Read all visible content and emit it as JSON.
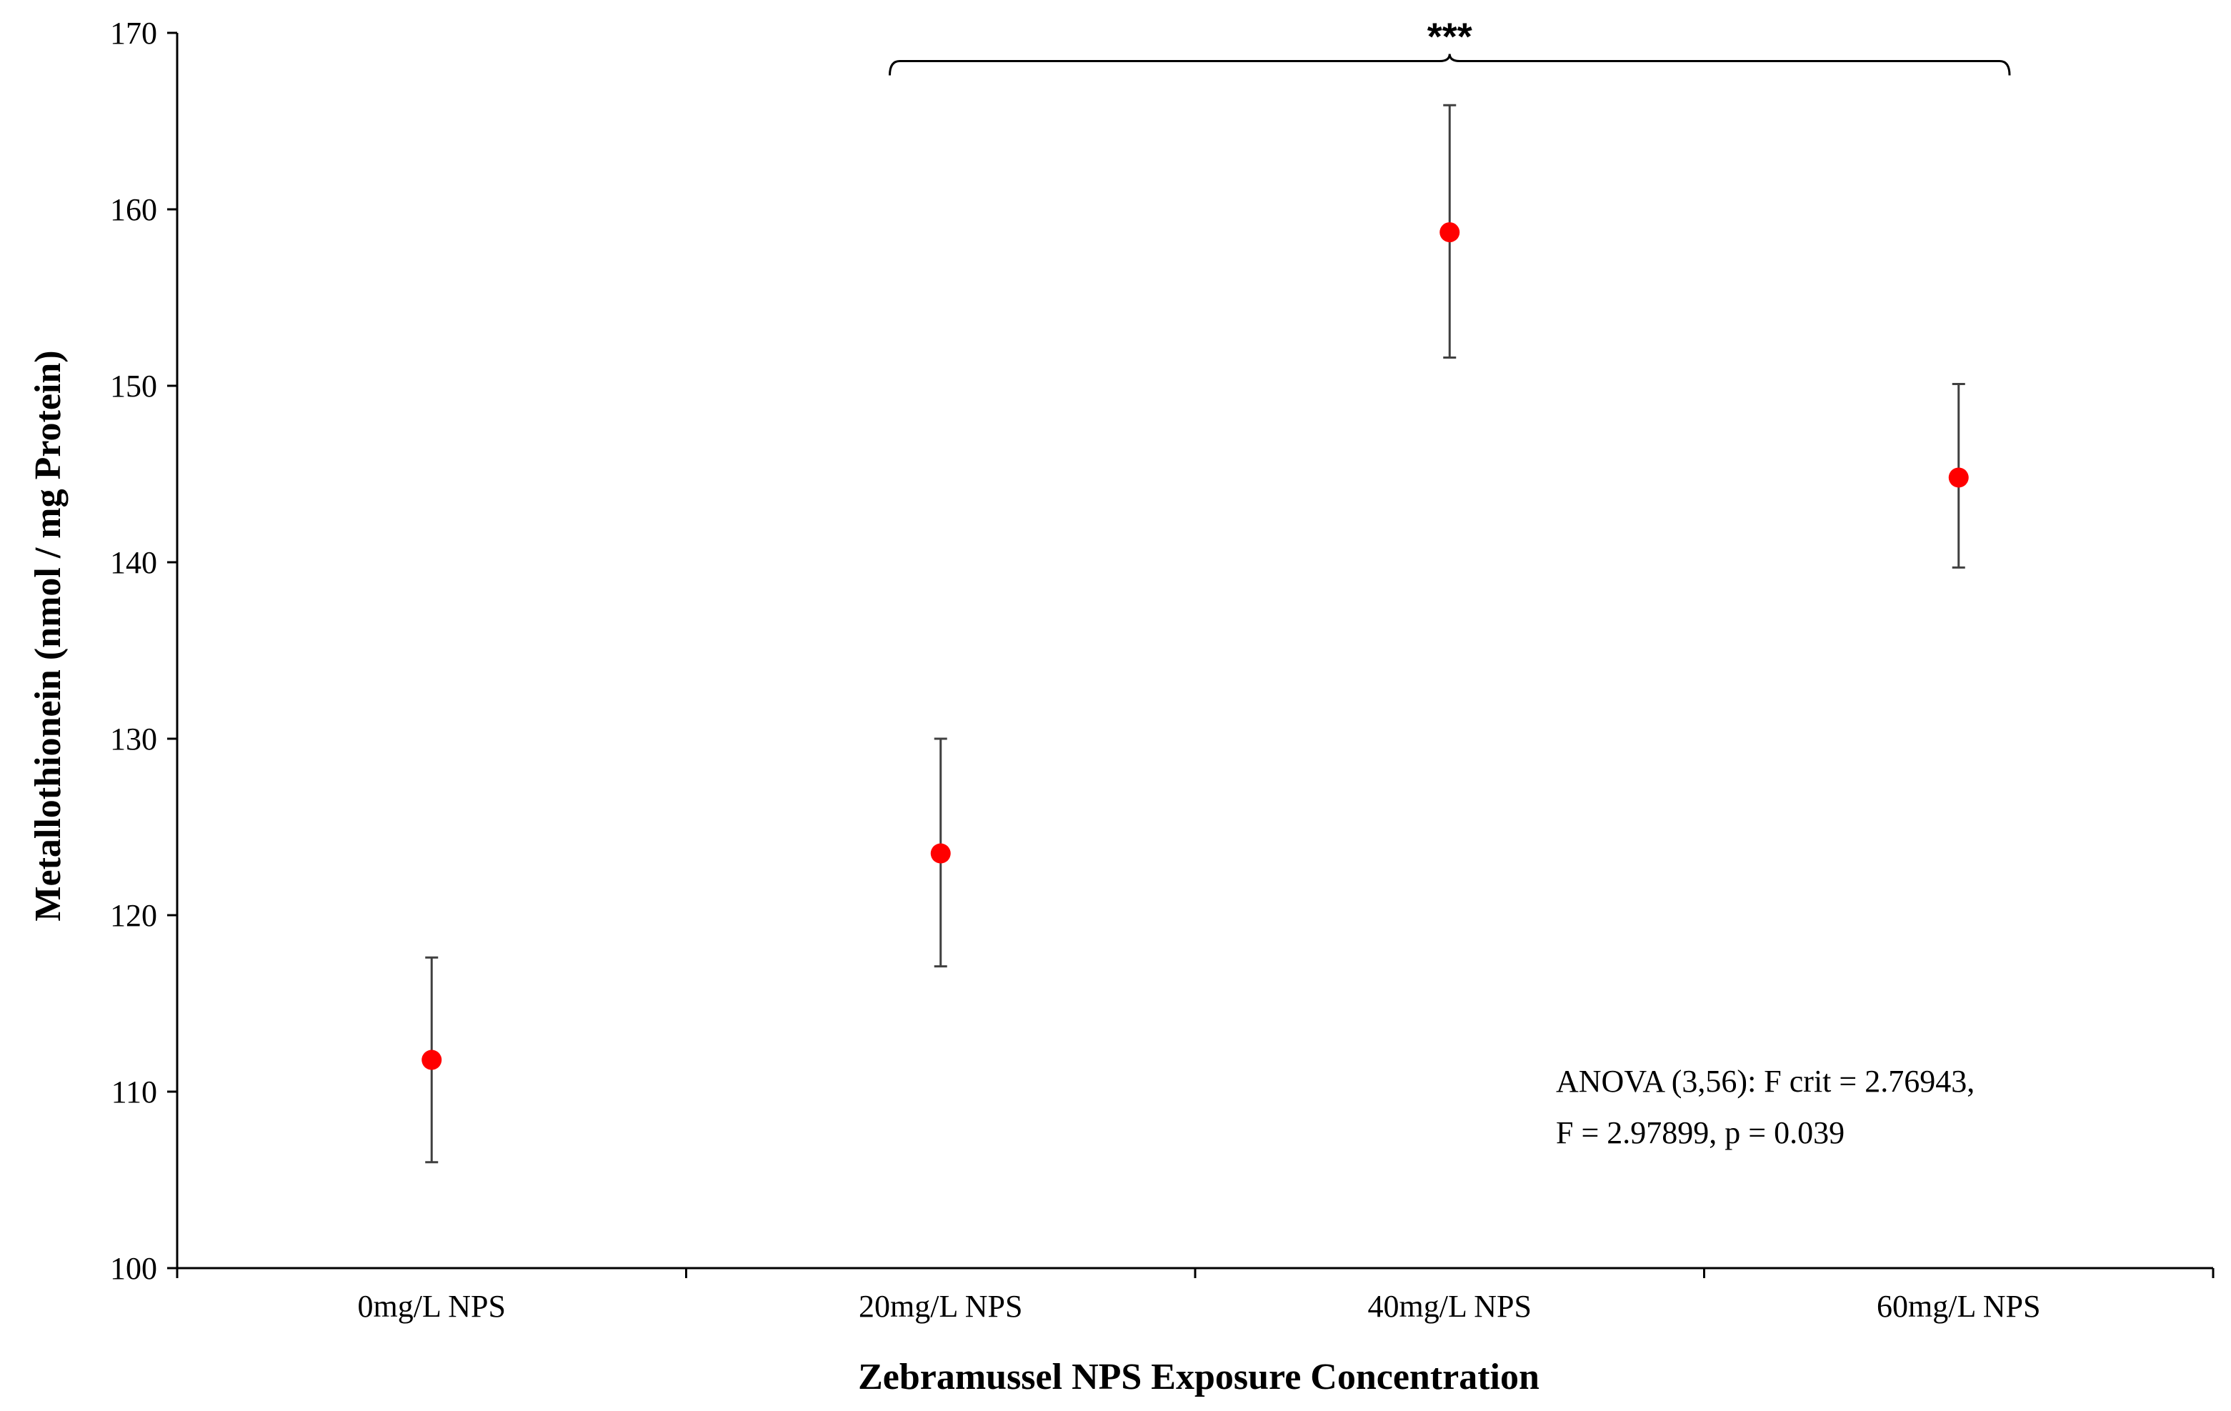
{
  "chart_data": {
    "type": "scatter",
    "xlabel": "Zebramussel NPS Exposure Concentration",
    "ylabel": "Metallothionein (nmol  / mg Protein)",
    "categories": [
      "0mg/L NPS",
      "20mg/L NPS",
      "40mg/L NPS",
      "60mg/L NPS"
    ],
    "series": [
      {
        "values": [
          111.8,
          123.5,
          158.7,
          144.8
        ],
        "error_low": [
          106.0,
          117.1,
          151.6,
          139.7
        ],
        "error_high": [
          117.6,
          130.0,
          165.9,
          150.1
        ],
        "color": "#ff0000"
      }
    ],
    "ylim": [
      100,
      170
    ],
    "yticks": [
      100,
      110,
      120,
      130,
      140,
      150,
      160,
      170
    ],
    "grid": false,
    "legend": "none",
    "annotations": {
      "significance": {
        "label": "***",
        "from_category": 1,
        "to_category": 3,
        "level": 168.4
      },
      "anova": {
        "line1": "ANOVA (3,56): F crit = 2.76943,",
        "line2": "F = 2.97899,  p = 0.039"
      }
    }
  }
}
